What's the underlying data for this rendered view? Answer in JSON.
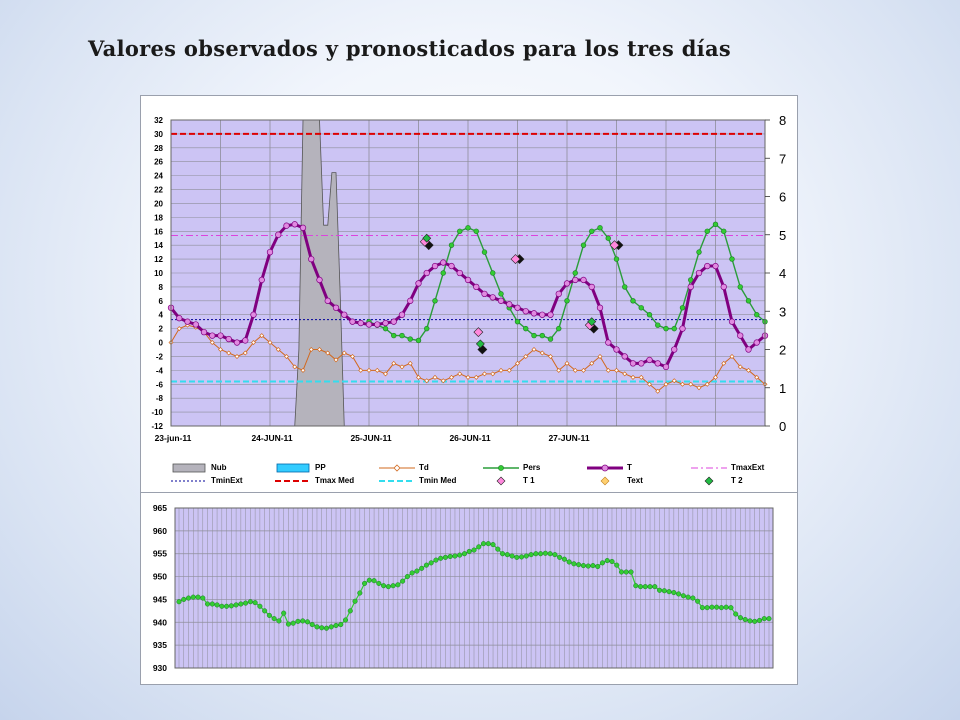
{
  "page": {
    "title": "Valores observados y pronosticados para los tres días"
  },
  "colors": {
    "plot_bg": "#ccc4f4",
    "grid": "#8e8e9a",
    "cloud_fill": "#b5b3bc",
    "t_line": "#800080",
    "t_marker_fill": "#e08ae0",
    "td_line": "#d2691e",
    "pers_line": "#2a9d3a",
    "pers_marker": "#33cc33",
    "tmax_med": "#dd0000",
    "tmin_med": "#33ddee",
    "tmax_ext": "#dd44dd",
    "tmin_ext": "#000099",
    "t1_marker": "#ff88dd",
    "t2_marker": "#22bb44",
    "pressure_line": "#33cc33"
  },
  "chart_data": [
    {
      "type": "line",
      "title": "",
      "x_tick_labels": [
        "23-jun-11",
        "24-JUN-11",
        "25-JUN-11",
        "26-JUN-11",
        "27-JUN-11"
      ],
      "x_unit": "hours since 23-jun-11 00:00",
      "x_range": [
        0,
        144
      ],
      "y_left_range": [
        -12,
        32
      ],
      "y_left_ticks": [
        "32",
        "30",
        "28",
        "26",
        "24",
        "22",
        "20",
        "18",
        "16",
        "14",
        "12",
        "10",
        "8",
        "6",
        "4",
        "2",
        "0",
        "-2",
        "-4",
        "-6",
        "-8",
        "-10",
        "-12"
      ],
      "y_right_range": [
        0,
        8
      ],
      "y_right_ticks": [
        "8",
        "7",
        "6",
        "5",
        "4",
        "3",
        "2",
        "1",
        "0"
      ],
      "grid": true,
      "legend_position": "bottom",
      "legend": [
        "Nub",
        "PP",
        "Td",
        "Pers",
        "T",
        "TmaxExt",
        "TminExt",
        "Tmax Med",
        "Tmin Med",
        "T 1",
        "Text",
        "T 2"
      ],
      "series": {
        "T": [
          [
            0,
            5
          ],
          [
            2,
            3.5
          ],
          [
            4,
            3
          ],
          [
            6,
            2.6
          ],
          [
            8,
            1.5
          ],
          [
            10,
            1
          ],
          [
            12,
            1
          ],
          [
            14,
            0.5
          ],
          [
            16,
            0
          ],
          [
            18,
            0.3
          ],
          [
            20,
            4
          ],
          [
            22,
            9
          ],
          [
            24,
            13
          ],
          [
            26,
            15.5
          ],
          [
            28,
            16.8
          ],
          [
            30,
            17
          ],
          [
            32,
            16.5
          ],
          [
            34,
            12
          ],
          [
            36,
            9
          ],
          [
            38,
            6
          ],
          [
            40,
            5
          ],
          [
            42,
            4
          ],
          [
            44,
            3
          ],
          [
            46,
            2.8
          ],
          [
            48,
            2.6
          ],
          [
            50,
            2.6
          ],
          [
            52,
            2.8
          ],
          [
            54,
            3
          ],
          [
            56,
            4
          ],
          [
            58,
            6
          ],
          [
            60,
            8.5
          ],
          [
            62,
            10
          ],
          [
            64,
            11
          ],
          [
            66,
            11.5
          ],
          [
            68,
            11
          ],
          [
            70,
            10
          ],
          [
            72,
            9
          ],
          [
            74,
            8
          ],
          [
            76,
            7
          ],
          [
            78,
            6.5
          ],
          [
            80,
            6
          ],
          [
            82,
            5.5
          ],
          [
            84,
            5
          ],
          [
            86,
            4.5
          ],
          [
            88,
            4.2
          ],
          [
            90,
            4
          ],
          [
            92,
            4
          ],
          [
            94,
            7
          ],
          [
            96,
            8.5
          ],
          [
            98,
            9
          ],
          [
            100,
            9
          ],
          [
            102,
            8
          ],
          [
            104,
            5
          ],
          [
            106,
            0
          ],
          [
            108,
            -1
          ],
          [
            110,
            -2
          ],
          [
            112,
            -3
          ],
          [
            114,
            -3
          ],
          [
            116,
            -2.5
          ],
          [
            118,
            -3
          ],
          [
            120,
            -3.5
          ],
          [
            122,
            -1
          ],
          [
            124,
            2
          ],
          [
            126,
            8
          ],
          [
            128,
            10
          ],
          [
            130,
            11
          ],
          [
            132,
            11
          ],
          [
            134,
            8
          ],
          [
            136,
            3
          ],
          [
            138,
            1
          ],
          [
            140,
            -1
          ],
          [
            142,
            0
          ],
          [
            144,
            1
          ]
        ],
        "Td": [
          [
            0,
            0
          ],
          [
            2,
            2
          ],
          [
            4,
            2.5
          ],
          [
            6,
            2.2
          ],
          [
            8,
            1.5
          ],
          [
            10,
            0
          ],
          [
            12,
            -1
          ],
          [
            14,
            -1.5
          ],
          [
            16,
            -2
          ],
          [
            18,
            -1.5
          ],
          [
            20,
            0
          ],
          [
            22,
            1
          ],
          [
            24,
            0
          ],
          [
            26,
            -1
          ],
          [
            28,
            -2
          ],
          [
            30,
            -3.5
          ],
          [
            32,
            -4
          ],
          [
            34,
            -1
          ],
          [
            36,
            -1
          ],
          [
            38,
            -1.5
          ],
          [
            40,
            -2.5
          ],
          [
            42,
            -1.5
          ],
          [
            44,
            -2
          ],
          [
            46,
            -4
          ],
          [
            48,
            -4
          ],
          [
            50,
            -4
          ],
          [
            52,
            -4.5
          ],
          [
            54,
            -3
          ],
          [
            56,
            -3.5
          ],
          [
            58,
            -3
          ],
          [
            60,
            -5
          ],
          [
            62,
            -5.5
          ],
          [
            64,
            -5
          ],
          [
            66,
            -5.5
          ],
          [
            68,
            -5
          ],
          [
            70,
            -4.5
          ],
          [
            72,
            -5
          ],
          [
            74,
            -5
          ],
          [
            76,
            -4.5
          ],
          [
            78,
            -4.5
          ],
          [
            80,
            -4
          ],
          [
            82,
            -4
          ],
          [
            84,
            -3
          ],
          [
            86,
            -2
          ],
          [
            88,
            -1
          ],
          [
            90,
            -1.5
          ],
          [
            92,
            -2
          ],
          [
            94,
            -4
          ],
          [
            96,
            -3
          ],
          [
            98,
            -4
          ],
          [
            100,
            -4
          ],
          [
            102,
            -3
          ],
          [
            104,
            -2
          ],
          [
            106,
            -4
          ],
          [
            108,
            -4
          ],
          [
            110,
            -4.5
          ],
          [
            112,
            -5
          ],
          [
            114,
            -5
          ],
          [
            116,
            -6
          ],
          [
            118,
            -7
          ],
          [
            120,
            -6
          ],
          [
            122,
            -5.5
          ],
          [
            124,
            -6
          ],
          [
            126,
            -6
          ],
          [
            128,
            -6.5
          ],
          [
            130,
            -6
          ],
          [
            132,
            -5
          ],
          [
            134,
            -3
          ],
          [
            136,
            -2
          ],
          [
            138,
            -3.5
          ],
          [
            140,
            -4
          ],
          [
            142,
            -5
          ],
          [
            144,
            -6
          ]
        ],
        "Pers": [
          [
            48,
            3
          ],
          [
            50,
            2.5
          ],
          [
            52,
            2
          ],
          [
            54,
            1
          ],
          [
            56,
            1
          ],
          [
            58,
            0.5
          ],
          [
            60,
            0.3
          ],
          [
            62,
            2
          ],
          [
            64,
            6
          ],
          [
            66,
            10
          ],
          [
            68,
            14
          ],
          [
            70,
            16
          ],
          [
            72,
            16.5
          ],
          [
            74,
            16
          ],
          [
            76,
            13
          ],
          [
            78,
            10
          ],
          [
            80,
            7
          ],
          [
            82,
            5
          ],
          [
            84,
            3
          ],
          [
            86,
            2
          ],
          [
            88,
            1
          ],
          [
            90,
            1
          ],
          [
            92,
            0.5
          ],
          [
            94,
            2
          ],
          [
            96,
            6
          ],
          [
            98,
            10
          ],
          [
            100,
            14
          ],
          [
            102,
            16
          ],
          [
            104,
            16.5
          ],
          [
            106,
            15
          ],
          [
            108,
            12
          ],
          [
            110,
            8
          ],
          [
            112,
            6
          ],
          [
            114,
            5
          ],
          [
            116,
            4
          ],
          [
            118,
            2.5
          ],
          [
            120,
            2
          ],
          [
            122,
            2
          ],
          [
            124,
            5
          ],
          [
            126,
            9
          ],
          [
            128,
            13
          ],
          [
            130,
            16
          ],
          [
            132,
            17
          ],
          [
            134,
            16
          ],
          [
            136,
            12
          ],
          [
            138,
            8
          ],
          [
            140,
            6
          ],
          [
            142,
            4
          ],
          [
            144,
            3
          ]
        ],
        "Nub": [
          [
            0,
            0
          ],
          [
            30,
            0
          ],
          [
            31,
            8
          ],
          [
            32,
            32
          ],
          [
            36,
            32
          ],
          [
            37,
            21
          ],
          [
            38,
            21
          ],
          [
            39,
            26.5
          ],
          [
            40,
            26.5
          ],
          [
            41,
            14
          ],
          [
            42,
            0
          ],
          [
            144,
            0
          ]
        ],
        "Tmax_Med": 30,
        "Tmin_Med": -5.6,
        "TmaxExt": 15.4,
        "TminExt": 3.3,
        "T1_points": [
          [
            62,
            14.5
          ],
          [
            75,
            1.5
          ],
          [
            84,
            12
          ],
          [
            102,
            2.5
          ],
          [
            108,
            14
          ]
        ],
        "T2_points": [
          [
            62,
            15
          ],
          [
            75,
            -0.2
          ],
          [
            102,
            3
          ]
        ],
        "Text_points": [
          [
            62,
            14
          ],
          [
            75,
            -1
          ],
          [
            84,
            12
          ],
          [
            102,
            2
          ],
          [
            108,
            14
          ]
        ]
      }
    },
    {
      "type": "line",
      "title": "",
      "y_range": [
        930,
        965
      ],
      "y_ticks": [
        "965",
        "960",
        "955",
        "950",
        "945",
        "940",
        "935",
        "930"
      ],
      "grid": true,
      "series": [
        {
          "values": [
            944.5,
            945,
            945.3,
            945.5,
            945.5,
            945.3,
            944,
            944,
            943.8,
            943.5,
            943.5,
            943.6,
            943.8,
            944,
            944.2,
            944.5,
            944.3,
            943.5,
            942.5,
            941.5,
            940.8,
            940.3,
            942,
            939.6,
            939.8,
            940.2,
            940.3,
            940.1,
            939.5,
            939,
            938.8,
            938.7,
            939,
            939.3,
            939.5,
            940.5,
            942.5,
            944.6,
            946.4,
            948.5,
            949.2,
            949.1,
            948.5,
            948,
            947.8,
            948,
            948.2,
            949,
            950,
            950.8,
            951.2,
            951.8,
            952.5,
            953,
            953.6,
            954,
            954.2,
            954.4,
            954.5,
            954.7,
            955,
            955.5,
            955.8,
            956.5,
            957.2,
            957.2,
            957,
            956,
            955,
            954.8,
            954.5,
            954.2,
            954.3,
            954.5,
            954.8,
            955,
            955,
            955.1,
            955,
            954.8,
            954.2,
            953.8,
            953.2,
            952.8,
            952.6,
            952.4,
            952.3,
            952.4,
            952.2,
            953,
            953.5,
            953.3,
            952.5,
            951,
            951,
            951,
            948,
            947.8,
            947.8,
            947.8,
            947.8,
            947,
            946.9,
            946.7,
            946.5,
            946.2,
            945.8,
            945.5,
            945.3,
            944.6,
            943.2,
            943.2,
            943.3,
            943.3,
            943.2,
            943.3,
            943.2,
            941.8,
            941,
            940.6,
            940.3,
            940.2,
            940.4,
            940.8,
            940.8
          ]
        }
      ]
    }
  ]
}
